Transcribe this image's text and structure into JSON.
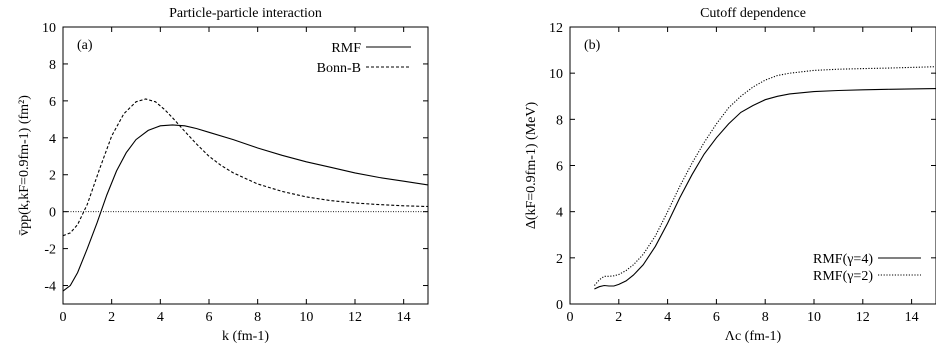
{
  "chart_data": [
    {
      "id": "a",
      "type": "line",
      "title": "Particle-particle interaction",
      "panel_label": "(a)",
      "xlabel": "k (fm-1)",
      "ylabel": "v̄pp(k,kF=0.9fm-1) (fm²)",
      "xlim": [
        0,
        15
      ],
      "ylim": [
        -5,
        10
      ],
      "x_ticks": [
        0,
        2,
        4,
        6,
        8,
        10,
        12,
        14
      ],
      "y_ticks": [
        -4,
        -2,
        0,
        2,
        4,
        6,
        8,
        10
      ],
      "grid": false,
      "legend_position": "top-right",
      "zero_line": true,
      "series": [
        {
          "name": "RMF",
          "style": "solid",
          "x": [
            0,
            0.3,
            0.6,
            1.0,
            1.4,
            1.8,
            2.2,
            2.6,
            3.0,
            3.5,
            4.0,
            4.5,
            5.0,
            5.5,
            6.0,
            7.0,
            8.0,
            9.0,
            10.0,
            11.0,
            12.0,
            13.0,
            14.0,
            15.0
          ],
          "y": [
            -4.3,
            -4.0,
            -3.3,
            -2.0,
            -0.6,
            0.9,
            2.2,
            3.2,
            3.9,
            4.4,
            4.65,
            4.7,
            4.65,
            4.5,
            4.3,
            3.9,
            3.45,
            3.05,
            2.7,
            2.4,
            2.1,
            1.85,
            1.65,
            1.45
          ]
        },
        {
          "name": "Bonn-B",
          "style": "dashed",
          "x": [
            0,
            0.3,
            0.6,
            1.0,
            1.5,
            2.0,
            2.5,
            3.0,
            3.4,
            3.8,
            4.2,
            4.6,
            5.0,
            5.5,
            6.0,
            6.5,
            7.0,
            8.0,
            9.0,
            10.0,
            11.0,
            12.0,
            13.0,
            14.0,
            15.0
          ],
          "y": [
            -1.3,
            -1.15,
            -0.7,
            0.4,
            2.3,
            4.1,
            5.3,
            5.95,
            6.1,
            5.95,
            5.5,
            4.95,
            4.35,
            3.65,
            3.0,
            2.5,
            2.1,
            1.5,
            1.1,
            0.8,
            0.6,
            0.47,
            0.38,
            0.32,
            0.28
          ]
        }
      ]
    },
    {
      "id": "b",
      "type": "line",
      "title": "Cutoff dependence",
      "panel_label": "(b)",
      "xlabel": "Λc (fm-1)",
      "ylabel": "Δ(kF=0.9fm-1) (MeV)",
      "xlim": [
        0,
        15
      ],
      "ylim": [
        0,
        12
      ],
      "x_ticks": [
        0,
        2,
        4,
        6,
        8,
        10,
        12,
        14
      ],
      "y_ticks": [
        0,
        2,
        4,
        6,
        8,
        10,
        12
      ],
      "grid": false,
      "legend_position": "bottom-right",
      "series": [
        {
          "name": "RMF(γ=4)",
          "style": "solid",
          "x": [
            1.0,
            1.2,
            1.4,
            1.6,
            1.8,
            2.0,
            2.3,
            2.6,
            3.0,
            3.5,
            4.0,
            4.5,
            5.0,
            5.5,
            6.0,
            6.5,
            7.0,
            7.5,
            8.0,
            8.5,
            9.0,
            10.0,
            11.0,
            12.0,
            13.0,
            14.0,
            15.0
          ],
          "y": [
            0.65,
            0.75,
            0.8,
            0.78,
            0.78,
            0.85,
            1.0,
            1.25,
            1.7,
            2.5,
            3.5,
            4.6,
            5.6,
            6.5,
            7.2,
            7.8,
            8.3,
            8.6,
            8.85,
            9.0,
            9.1,
            9.2,
            9.25,
            9.28,
            9.3,
            9.32,
            9.33
          ]
        },
        {
          "name": "RMF(γ=2)",
          "style": "dotted",
          "x": [
            1.0,
            1.2,
            1.4,
            1.6,
            1.8,
            2.0,
            2.3,
            2.6,
            3.0,
            3.5,
            4.0,
            4.5,
            5.0,
            5.5,
            6.0,
            6.5,
            7.0,
            7.5,
            8.0,
            8.5,
            9.0,
            10.0,
            11.0,
            12.0,
            13.0,
            14.0,
            15.0
          ],
          "y": [
            0.8,
            1.05,
            1.2,
            1.2,
            1.22,
            1.28,
            1.45,
            1.7,
            2.15,
            2.95,
            4.0,
            5.1,
            6.1,
            7.0,
            7.8,
            8.5,
            9.0,
            9.4,
            9.7,
            9.9,
            10.0,
            10.12,
            10.17,
            10.2,
            10.22,
            10.25,
            10.28
          ]
        }
      ]
    }
  ]
}
